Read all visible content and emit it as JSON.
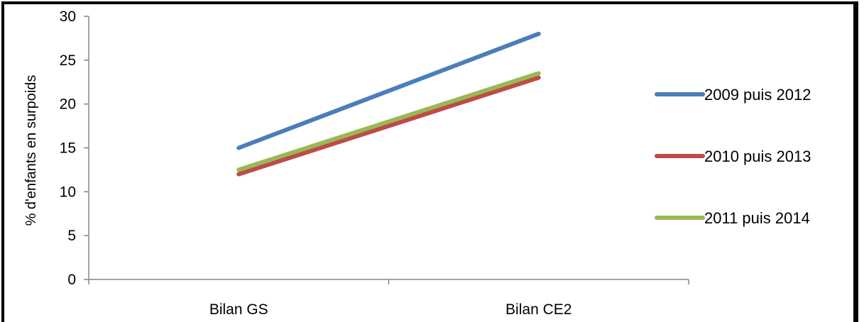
{
  "chart_data": {
    "type": "line",
    "title": "",
    "xlabel": "",
    "ylabel": "% d'enfants en surpoids",
    "categories": [
      "Bilan GS",
      "Bilan CE2"
    ],
    "ylim": [
      0,
      30
    ],
    "yticks": [
      0,
      5,
      10,
      15,
      20,
      25,
      30
    ],
    "grid": false,
    "legend_position": "right",
    "series": [
      {
        "name": "2009 puis 2012",
        "values": [
          15,
          28
        ],
        "color": "#4a7ebb"
      },
      {
        "name": "2010 puis 2013",
        "values": [
          12,
          23
        ],
        "color": "#be4b48"
      },
      {
        "name": "2011 puis 2014",
        "values": [
          12.5,
          23.5
        ],
        "color": "#98b954"
      }
    ]
  }
}
